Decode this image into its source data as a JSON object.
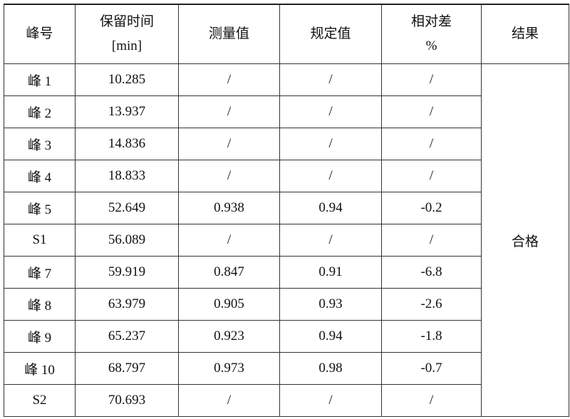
{
  "headers": {
    "peak": "峰号",
    "rt_line1": "保留时间",
    "rt_line2": "[min]",
    "measured": "测量值",
    "specified": "规定值",
    "diff_line1": "相对差",
    "diff_line2": "%",
    "result": "结果"
  },
  "result": "合格",
  "rows": [
    {
      "peak": "峰 1",
      "rt": "10.285",
      "measured": "/",
      "specified": "/",
      "diff": "/"
    },
    {
      "peak": "峰 2",
      "rt": "13.937",
      "measured": "/",
      "specified": "/",
      "diff": "/"
    },
    {
      "peak": "峰 3",
      "rt": "14.836",
      "measured": "/",
      "specified": "/",
      "diff": "/"
    },
    {
      "peak": "峰 4",
      "rt": "18.833",
      "measured": "/",
      "specified": "/",
      "diff": "/"
    },
    {
      "peak": "峰 5",
      "rt": "52.649",
      "measured": "0.938",
      "specified": "0.94",
      "diff": "-0.2"
    },
    {
      "peak": "S1",
      "rt": "56.089",
      "measured": "/",
      "specified": "/",
      "diff": "/"
    },
    {
      "peak": "峰 7",
      "rt": "59.919",
      "measured": "0.847",
      "specified": "0.91",
      "diff": "-6.8"
    },
    {
      "peak": "峰 8",
      "rt": "63.979",
      "measured": "0.905",
      "specified": "0.93",
      "diff": "-2.6"
    },
    {
      "peak": "峰 9",
      "rt": "65.237",
      "measured": "0.923",
      "specified": "0.94",
      "diff": "-1.8"
    },
    {
      "peak": "峰 10",
      "rt": "68.797",
      "measured": "0.973",
      "specified": "0.98",
      "diff": "-0.7"
    },
    {
      "peak": "S2",
      "rt": "70.693",
      "measured": "/",
      "specified": "/",
      "diff": "/"
    }
  ]
}
